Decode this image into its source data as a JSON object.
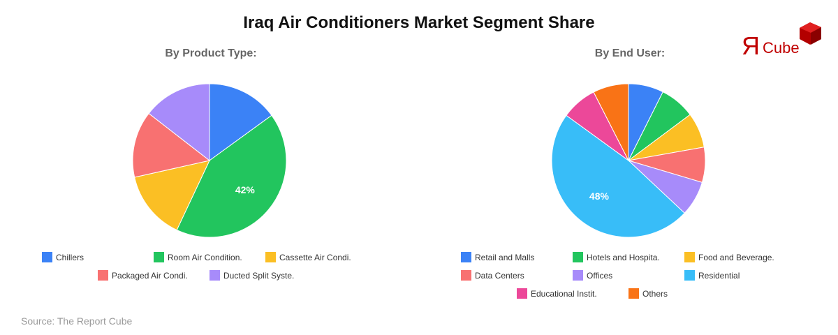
{
  "title": "Iraq Air Conditioners Market Segment Share",
  "source": "Source: The Report Cube",
  "logo": {
    "glyph": "Я",
    "text": "Cube",
    "color": "#c00000"
  },
  "chart_data": [
    {
      "type": "pie",
      "title": "By Product Type:",
      "categories": [
        "Chillers",
        "Room Air Condition.",
        "Cassette Air Condi.",
        "Packaged Air Condi.",
        "Ducted Split Syste."
      ],
      "values": [
        15.0,
        42.0,
        14.5,
        14.0,
        14.5
      ],
      "colors": [
        "#3b82f6",
        "#22c55e",
        "#fbbf24",
        "#f87171",
        "#a78bfa"
      ],
      "data_labels": [
        {
          "category": "Room Air Condition.",
          "label": "42%"
        }
      ],
      "legend_position": "bottom"
    },
    {
      "type": "pie",
      "title": "By End User:",
      "categories": [
        "Retail and Malls",
        "Hotels and Hospita.",
        "Food and Beverage.",
        "Data Centers",
        "Offices",
        "Residential",
        "Educational Instit.",
        "Others"
      ],
      "values": [
        7.4,
        7.4,
        7.4,
        7.4,
        7.4,
        48.0,
        7.5,
        7.5
      ],
      "colors": [
        "#3b82f6",
        "#22c55e",
        "#fbbf24",
        "#f87171",
        "#a78bfa",
        "#38bdf8",
        "#ec4899",
        "#f97316"
      ],
      "data_labels": [
        {
          "category": "Residential",
          "label": "48%"
        }
      ],
      "legend_position": "bottom"
    }
  ]
}
